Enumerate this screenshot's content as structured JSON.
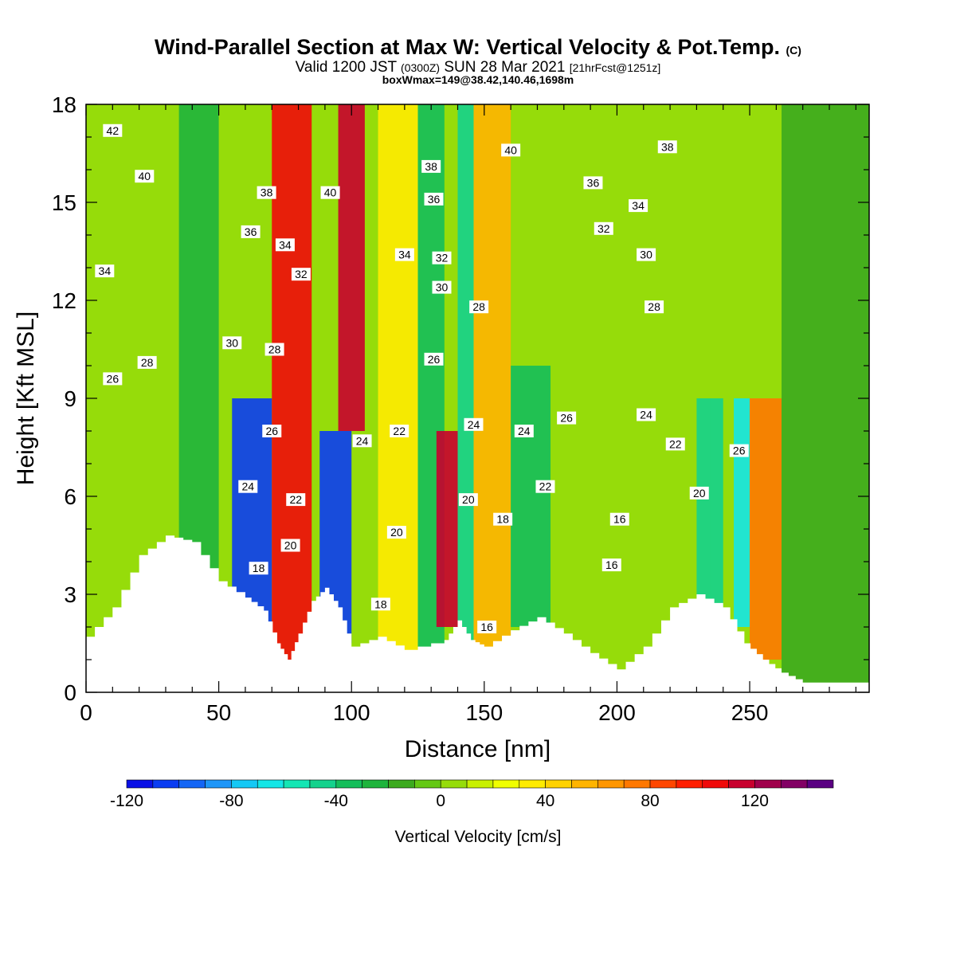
{
  "header": {
    "title": "Wind-Parallel Section at Max W: Vertical Velocity & Pot.Temp.",
    "copyright": "(C)",
    "valid_main": "Valid 1200 JST",
    "valid_zulu": "(0300Z)",
    "valid_date": "SUN 28 Mar 2021",
    "forecast": "[21hrFcst@1251z]",
    "box_info": "boxWmax=149@38.42,140.46,1698m"
  },
  "chart_data": {
    "type": "heatmap",
    "xlabel": "Distance [nm]",
    "ylabel": "Height [Kft MSL]",
    "xlim": [
      0,
      295
    ],
    "ylim": [
      0,
      18
    ],
    "xticks": [
      0,
      50,
      100,
      150,
      200,
      250
    ],
    "yticks": [
      0,
      3,
      6,
      9,
      12,
      15,
      18
    ],
    "colorbar": {
      "label": "Vertical Velocity [cm/s]",
      "ticks": [
        -120,
        -80,
        -40,
        0,
        40,
        80,
        120
      ],
      "range": [
        -120,
        150
      ],
      "colors": [
        "#0a10e6",
        "#0a3cf2",
        "#1466f5",
        "#1e96f8",
        "#14c8f5",
        "#14e6e6",
        "#14e6b4",
        "#14d28c",
        "#14be5a",
        "#1eb43c",
        "#3caa1e",
        "#64c814",
        "#96dc0a",
        "#c8f000",
        "#f0ff00",
        "#ffeb00",
        "#ffd200",
        "#ffb400",
        "#ff9600",
        "#ff7800",
        "#ff4600",
        "#ff1e00",
        "#f00a0a",
        "#c8002d",
        "#a0004b",
        "#820064",
        "#5a0082"
      ]
    },
    "cells": [
      {
        "x": [
          0,
          35
        ],
        "y": [
          0,
          18
        ],
        "w": 5
      },
      {
        "x": [
          35,
          50
        ],
        "y": [
          0,
          18
        ],
        "w": -25
      },
      {
        "x": [
          55,
          70
        ],
        "y": [
          2,
          9
        ],
        "w": -110
      },
      {
        "x": [
          70,
          85
        ],
        "y": [
          1,
          18
        ],
        "w": 100
      },
      {
        "x": [
          88,
          100
        ],
        "y": [
          1.5,
          8
        ],
        "w": -105
      },
      {
        "x": [
          95,
          105
        ],
        "y": [
          8,
          18
        ],
        "w": 115
      },
      {
        "x": [
          110,
          125
        ],
        "y": [
          0,
          18
        ],
        "w": 30
      },
      {
        "x": [
          125,
          135
        ],
        "y": [
          0,
          18
        ],
        "w": -35
      },
      {
        "x": [
          132,
          140
        ],
        "y": [
          2,
          8
        ],
        "w": 115
      },
      {
        "x": [
          140,
          146
        ],
        "y": [
          0,
          18
        ],
        "w": -50
      },
      {
        "x": [
          146,
          160
        ],
        "y": [
          0,
          18
        ],
        "w": 50
      },
      {
        "x": [
          160,
          175
        ],
        "y": [
          2,
          10
        ],
        "w": -35
      },
      {
        "x": [
          175,
          235
        ],
        "y": [
          0,
          18
        ],
        "w": 5
      },
      {
        "x": [
          230,
          240
        ],
        "y": [
          1,
          9
        ],
        "w": -50
      },
      {
        "x": [
          244,
          250
        ],
        "y": [
          2,
          9
        ],
        "w": -70
      },
      {
        "x": [
          250,
          262
        ],
        "y": [
          1,
          9
        ],
        "w": 70
      },
      {
        "x": [
          262,
          295
        ],
        "y": [
          0,
          18
        ],
        "w": -20
      }
    ],
    "terrain": [
      {
        "x": 0,
        "h": 1.7
      },
      {
        "x": 10,
        "h": 2.6
      },
      {
        "x": 20,
        "h": 4.2
      },
      {
        "x": 30,
        "h": 4.8
      },
      {
        "x": 40,
        "h": 4.6
      },
      {
        "x": 50,
        "h": 3.4
      },
      {
        "x": 60,
        "h": 2.9
      },
      {
        "x": 67,
        "h": 2.5
      },
      {
        "x": 72,
        "h": 1.5
      },
      {
        "x": 76,
        "h": 1.0
      },
      {
        "x": 80,
        "h": 1.8
      },
      {
        "x": 85,
        "h": 2.8
      },
      {
        "x": 90,
        "h": 3.2
      },
      {
        "x": 95,
        "h": 2.6
      },
      {
        "x": 100,
        "h": 1.4
      },
      {
        "x": 110,
        "h": 1.7
      },
      {
        "x": 120,
        "h": 1.3
      },
      {
        "x": 135,
        "h": 1.6
      },
      {
        "x": 140,
        "h": 2.2
      },
      {
        "x": 145,
        "h": 1.6
      },
      {
        "x": 150,
        "h": 1.4
      },
      {
        "x": 160,
        "h": 1.9
      },
      {
        "x": 170,
        "h": 2.3
      },
      {
        "x": 180,
        "h": 1.8
      },
      {
        "x": 190,
        "h": 1.2
      },
      {
        "x": 200,
        "h": 0.7
      },
      {
        "x": 210,
        "h": 1.4
      },
      {
        "x": 220,
        "h": 2.6
      },
      {
        "x": 230,
        "h": 3.0
      },
      {
        "x": 240,
        "h": 2.6
      },
      {
        "x": 248,
        "h": 1.5
      },
      {
        "x": 255,
        "h": 1.0
      },
      {
        "x": 262,
        "h": 0.6
      },
      {
        "x": 270,
        "h": 0.3
      },
      {
        "x": 295,
        "h": 0.3
      }
    ],
    "contour_labels": [
      {
        "t": "42",
        "x": 10,
        "y": 17.2
      },
      {
        "t": "40",
        "x": 22,
        "y": 15.8
      },
      {
        "t": "38",
        "x": 68,
        "y": 15.3
      },
      {
        "t": "40",
        "x": 92,
        "y": 15.3
      },
      {
        "t": "38",
        "x": 130,
        "y": 16.1
      },
      {
        "t": "36",
        "x": 131,
        "y": 15.1
      },
      {
        "t": "40",
        "x": 160,
        "y": 16.6
      },
      {
        "t": "38",
        "x": 219,
        "y": 16.7
      },
      {
        "t": "36",
        "x": 191,
        "y": 15.6
      },
      {
        "t": "34",
        "x": 208,
        "y": 14.9
      },
      {
        "t": "36",
        "x": 62,
        "y": 14.1
      },
      {
        "t": "34",
        "x": 75,
        "y": 13.7
      },
      {
        "t": "32",
        "x": 81,
        "y": 12.8
      },
      {
        "t": "34",
        "x": 120,
        "y": 13.4
      },
      {
        "t": "32",
        "x": 134,
        "y": 13.3
      },
      {
        "t": "32",
        "x": 195,
        "y": 14.2
      },
      {
        "t": "30",
        "x": 211,
        "y": 13.4
      },
      {
        "t": "34",
        "x": 7,
        "y": 12.9
      },
      {
        "t": "30",
        "x": 134,
        "y": 12.4
      },
      {
        "t": "28",
        "x": 148,
        "y": 11.8
      },
      {
        "t": "28",
        "x": 214,
        "y": 11.8
      },
      {
        "t": "30",
        "x": 55,
        "y": 10.7
      },
      {
        "t": "28",
        "x": 71,
        "y": 10.5
      },
      {
        "t": "28",
        "x": 23,
        "y": 10.1
      },
      {
        "t": "26",
        "x": 131,
        "y": 10.2
      },
      {
        "t": "26",
        "x": 10,
        "y": 9.6
      },
      {
        "t": "26",
        "x": 181,
        "y": 8.4
      },
      {
        "t": "24",
        "x": 211,
        "y": 8.5
      },
      {
        "t": "26",
        "x": 70,
        "y": 8.0
      },
      {
        "t": "22",
        "x": 118,
        "y": 8.0
      },
      {
        "t": "24",
        "x": 104,
        "y": 7.7
      },
      {
        "t": "24",
        "x": 146,
        "y": 8.2
      },
      {
        "t": "24",
        "x": 165,
        "y": 8.0
      },
      {
        "t": "22",
        "x": 222,
        "y": 7.6
      },
      {
        "t": "26",
        "x": 246,
        "y": 7.4
      },
      {
        "t": "24",
        "x": 61,
        "y": 6.3
      },
      {
        "t": "22",
        "x": 173,
        "y": 6.3
      },
      {
        "t": "20",
        "x": 231,
        "y": 6.1
      },
      {
        "t": "22",
        "x": 79,
        "y": 5.9
      },
      {
        "t": "20",
        "x": 144,
        "y": 5.9
      },
      {
        "t": "18",
        "x": 157,
        "y": 5.3
      },
      {
        "t": "16",
        "x": 201,
        "y": 5.3
      },
      {
        "t": "20",
        "x": 117,
        "y": 4.9
      },
      {
        "t": "20",
        "x": 77,
        "y": 4.5
      },
      {
        "t": "16",
        "x": 198,
        "y": 3.9
      },
      {
        "t": "18",
        "x": 65,
        "y": 3.8
      },
      {
        "t": "18",
        "x": 111,
        "y": 2.7
      },
      {
        "t": "16",
        "x": 151,
        "y": 2.0
      }
    ]
  }
}
